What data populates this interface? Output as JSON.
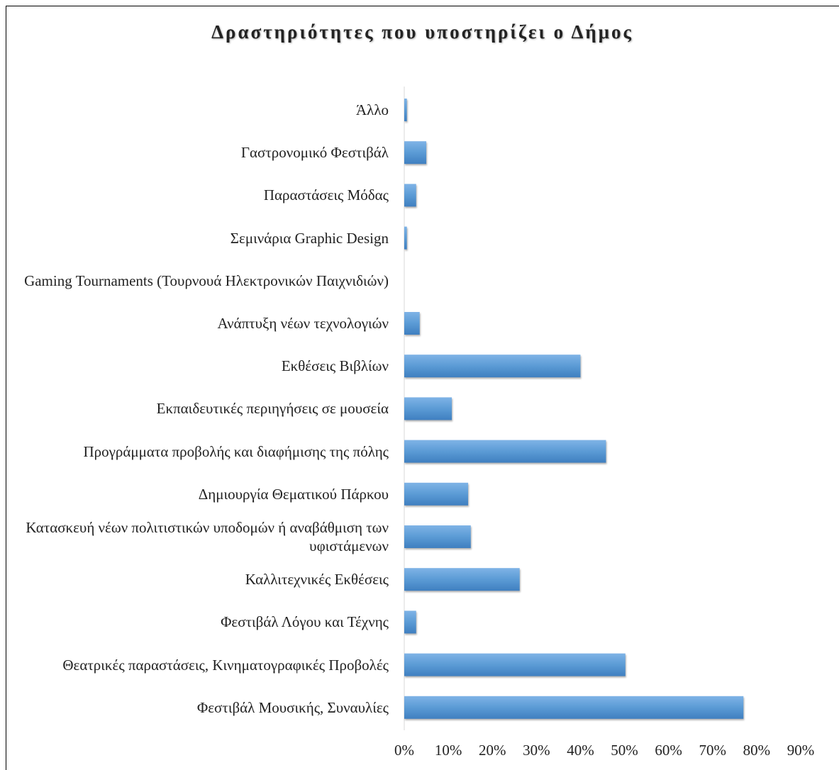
{
  "chart_data": {
    "type": "barh",
    "title": "Δραστηριότητες που υποστηρίζει ο Δήμος",
    "categories": [
      "Άλλο",
      "Γαστρονομικό Φεστιβάλ",
      "Παραστάσεις Μόδας",
      "Σεμινάρια Graphic Design",
      "Gaming Tournaments (Τουρνουά Ηλεκτρονικών Παιχνιδιών)",
      "Ανάπτυξη νέων τεχνολογιών",
      "Εκθέσεις Βιβλίων",
      "Εκπαιδευτικές περιηγήσεις σε μουσεία",
      "Προγράμματα προβολής και διαφήμισης της πόλης",
      "Δημιουργία Θεματικού Πάρκου",
      "Κατασκευή νέων πολιτιστικών υποδομών ή αναβάθμιση των υφιστάμενων",
      "Καλλιτεχνικές Εκθέσεις",
      "Φεστιβάλ Λόγου και Τέχνης",
      "Θεατρικές παραστάσεις, Κινηματογραφικές Προβολές",
      "Φεστιβάλ Μουσικής, Συναυλίες"
    ],
    "values": [
      0.6,
      5,
      2.7,
      0.6,
      0,
      3.5,
      40,
      10.8,
      45.8,
      14.5,
      15.1,
      26.2,
      2.7,
      50.2,
      77
    ],
    "color": "#5b9bd5",
    "xlim": [
      0,
      90
    ],
    "xticks": [
      {
        "value": 0,
        "label": "0%"
      },
      {
        "value": 10,
        "label": "10%"
      },
      {
        "value": 20,
        "label": "20%"
      },
      {
        "value": 30,
        "label": "30%"
      },
      {
        "value": 40,
        "label": "40%"
      },
      {
        "value": 50,
        "label": "50%"
      },
      {
        "value": 60,
        "label": "60%"
      },
      {
        "value": 70,
        "label": "70%"
      },
      {
        "value": 80,
        "label": "80%"
      },
      {
        "value": 90,
        "label": "90%"
      }
    ]
  }
}
